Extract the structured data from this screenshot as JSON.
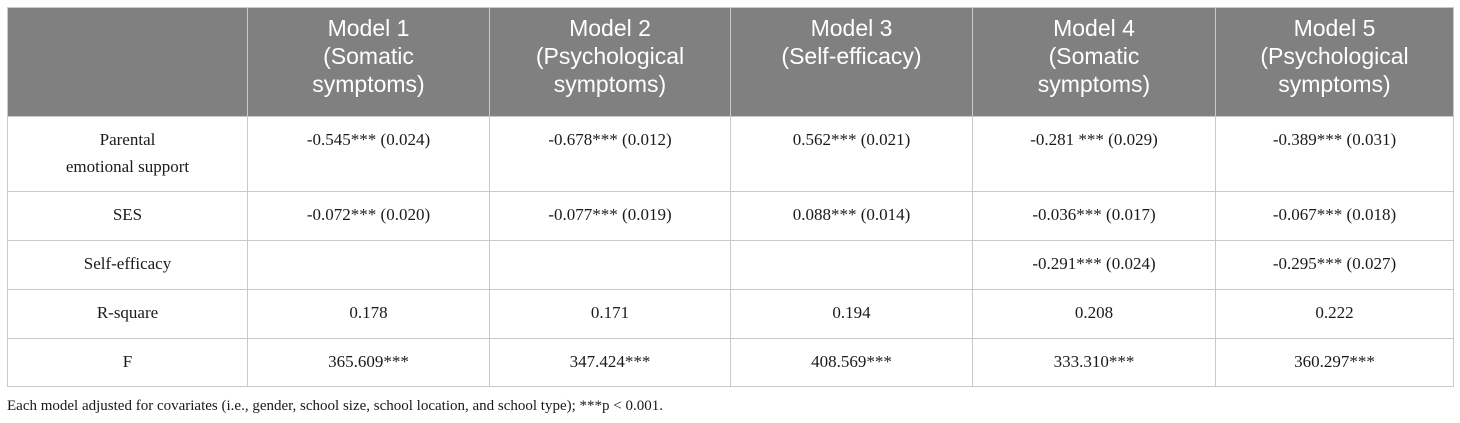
{
  "headers": [
    "",
    [
      "Model 1",
      "(Somatic",
      "symptoms)"
    ],
    [
      "Model 2",
      "(Psychological",
      "symptoms)"
    ],
    [
      "Model 3",
      "(Self-efficacy)"
    ],
    [
      "Model 4",
      "(Somatic",
      "symptoms)"
    ],
    [
      "Model 5",
      "(Psychological",
      "symptoms)"
    ]
  ],
  "rows": [
    {
      "label": [
        "Parental",
        "emotional support"
      ],
      "cells": [
        "-0.545*** (0.024)",
        "-0.678*** (0.012)",
        "0.562*** (0.021)",
        "-0.281 *** (0.029)",
        "-0.389*** (0.031)"
      ]
    },
    {
      "label": [
        "SES"
      ],
      "cells": [
        "-0.072*** (0.020)",
        "-0.077*** (0.019)",
        "0.088*** (0.014)",
        "-0.036*** (0.017)",
        "-0.067*** (0.018)"
      ]
    },
    {
      "label": [
        "Self-efficacy"
      ],
      "cells": [
        "",
        "",
        "",
        "-0.291*** (0.024)",
        "-0.295*** (0.027)"
      ]
    },
    {
      "label": [
        "R-square"
      ],
      "cells": [
        "0.178",
        "0.171",
        "0.194",
        "0.208",
        "0.222"
      ]
    },
    {
      "label": [
        "F"
      ],
      "cells": [
        "365.609***",
        "347.424***",
        "408.569***",
        "333.310***",
        "360.297***"
      ]
    }
  ],
  "footnote": "Each model adjusted for covariates (i.e., gender, school size, school location, and school type); ***p < 0.001."
}
